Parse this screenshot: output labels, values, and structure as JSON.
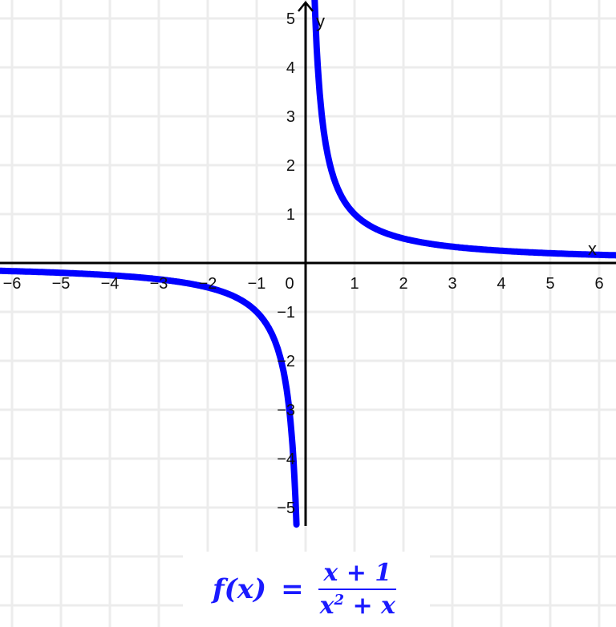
{
  "chart_data": {
    "type": "line",
    "title": "",
    "function": "f(x) = (x + 1) / (x^2 + x)",
    "xlabel": "x",
    "ylabel": "y",
    "xlim": [
      -6.25,
      6.34
    ],
    "ylim": [
      -5.36,
      5.38
    ],
    "x_ticks": [
      "−6",
      "−5",
      "−4",
      "−3",
      "−2",
      "−1",
      "1",
      "2",
      "3",
      "4",
      "5",
      "6"
    ],
    "y_ticks": [
      "5",
      "4",
      "3",
      "2",
      "1",
      "−1",
      "−2",
      "−3",
      "−4",
      "−5"
    ],
    "origin_label": "0",
    "grid": true,
    "series": [
      {
        "color": "#0000ff",
        "points": [
          [
            -6.25,
            -0.16
          ],
          [
            -6,
            -0.167
          ],
          [
            -5,
            -0.2
          ],
          [
            -4,
            -0.25
          ],
          [
            -3,
            -0.333
          ],
          [
            -2,
            -0.5
          ],
          [
            -1.5,
            -0.667
          ],
          [
            -1,
            -1
          ],
          [
            -0.75,
            -1.333
          ],
          [
            -0.5,
            -2
          ],
          [
            -0.4,
            -2.5
          ],
          [
            -0.3,
            -3.333
          ],
          [
            -0.25,
            -4
          ],
          [
            -0.2,
            -5
          ],
          [
            -0.187,
            -5.35
          ],
          [
            0.186,
            5.38
          ],
          [
            0.2,
            5
          ],
          [
            0.25,
            4
          ],
          [
            0.3,
            3.333
          ],
          [
            0.4,
            2.5
          ],
          [
            0.5,
            2
          ],
          [
            0.75,
            1.333
          ],
          [
            1,
            1
          ],
          [
            1.5,
            0.667
          ],
          [
            2,
            0.5
          ],
          [
            3,
            0.333
          ],
          [
            4,
            0.25
          ],
          [
            5,
            0.2
          ],
          [
            6,
            0.167
          ],
          [
            6.34,
            0.158
          ]
        ]
      }
    ]
  },
  "formula": {
    "lhs": "f(x)",
    "equals": "=",
    "numerator": "x + 1",
    "denominator_base": "x",
    "denominator_exp": "2",
    "denominator_rest": " + x"
  }
}
